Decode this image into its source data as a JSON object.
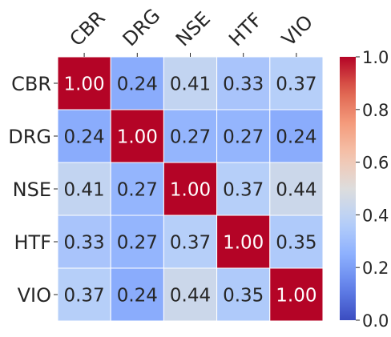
{
  "chart_data": {
    "type": "heatmap",
    "title": "",
    "xlabel": "",
    "ylabel": "",
    "x_categories": [
      "CBR",
      "DRG",
      "NSE",
      "HTF",
      "VIO"
    ],
    "y_categories": [
      "CBR",
      "DRG",
      "NSE",
      "HTF",
      "VIO"
    ],
    "values": [
      [
        1.0,
        0.24,
        0.41,
        0.33,
        0.37
      ],
      [
        0.24,
        1.0,
        0.27,
        0.27,
        0.24
      ],
      [
        0.41,
        0.27,
        1.0,
        0.37,
        0.44
      ],
      [
        0.33,
        0.27,
        0.37,
        1.0,
        0.35
      ],
      [
        0.37,
        0.24,
        0.44,
        0.35,
        1.0
      ]
    ],
    "value_format": "0.00",
    "colormap": "coolwarm",
    "vmin": 0.0,
    "vmax": 1.0,
    "colorbar": {
      "ticks": [
        0.0,
        0.2,
        0.4,
        0.6,
        0.8,
        1.0
      ],
      "tick_labels": [
        "0.0",
        "0.2",
        "0.4",
        "0.6",
        "0.8",
        "1.0"
      ]
    },
    "grid_line_color": "#ffffff",
    "text_color_dark": "#262626",
    "text_color_light": "#ffffff"
  }
}
